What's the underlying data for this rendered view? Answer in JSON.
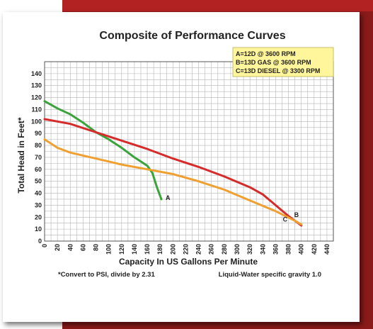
{
  "chart_data": {
    "type": "line",
    "title": "Composite of Performance Curves",
    "xlabel": "Capacity In US Gallons Per Minute",
    "ylabel": "Total Head in Feet*",
    "xlim": [
      0,
      450
    ],
    "ylim": [
      0,
      150
    ],
    "x_ticks": [
      0,
      20,
      40,
      60,
      80,
      100,
      120,
      140,
      160,
      180,
      200,
      220,
      240,
      260,
      280,
      300,
      320,
      340,
      360,
      380,
      400,
      420,
      440
    ],
    "y_ticks": [
      0,
      10,
      20,
      30,
      40,
      50,
      60,
      70,
      80,
      90,
      100,
      110,
      120,
      130,
      140
    ],
    "grid": true,
    "legend": {
      "placement": "top-right",
      "entries": [
        "A=12D @ 3600 RPM",
        "B=13D GAS @ 3600 RPM",
        "C=13D DIESEL @ 3300 RPM"
      ]
    },
    "series": [
      {
        "label": "A",
        "color": "#3aa33a",
        "points": [
          [
            0,
            117
          ],
          [
            20,
            111
          ],
          [
            40,
            106
          ],
          [
            60,
            99
          ],
          [
            80,
            91
          ],
          [
            100,
            85
          ],
          [
            120,
            78
          ],
          [
            140,
            70
          ],
          [
            160,
            63
          ],
          [
            168,
            57
          ],
          [
            175,
            45
          ],
          [
            182,
            35
          ]
        ]
      },
      {
        "label": "B",
        "color": "#d62b2b",
        "points": [
          [
            0,
            102
          ],
          [
            40,
            98
          ],
          [
            80,
            91
          ],
          [
            120,
            84
          ],
          [
            160,
            77
          ],
          [
            200,
            69
          ],
          [
            240,
            62
          ],
          [
            280,
            54
          ],
          [
            320,
            45
          ],
          [
            340,
            39
          ],
          [
            360,
            30
          ],
          [
            380,
            21
          ],
          [
            400,
            13
          ]
        ]
      },
      {
        "label": "C",
        "color": "#f0a030",
        "points": [
          [
            0,
            85
          ],
          [
            20,
            78
          ],
          [
            40,
            74
          ],
          [
            80,
            69
          ],
          [
            120,
            64
          ],
          [
            160,
            60
          ],
          [
            200,
            56
          ],
          [
            240,
            50
          ],
          [
            280,
            43
          ],
          [
            320,
            34
          ],
          [
            360,
            25
          ],
          [
            390,
            17
          ],
          [
            400,
            14
          ]
        ]
      }
    ]
  },
  "notes": {
    "left": "*Convert to PSI, divide by 2.31",
    "right": "Liquid-Water specific gravity 1.0"
  }
}
